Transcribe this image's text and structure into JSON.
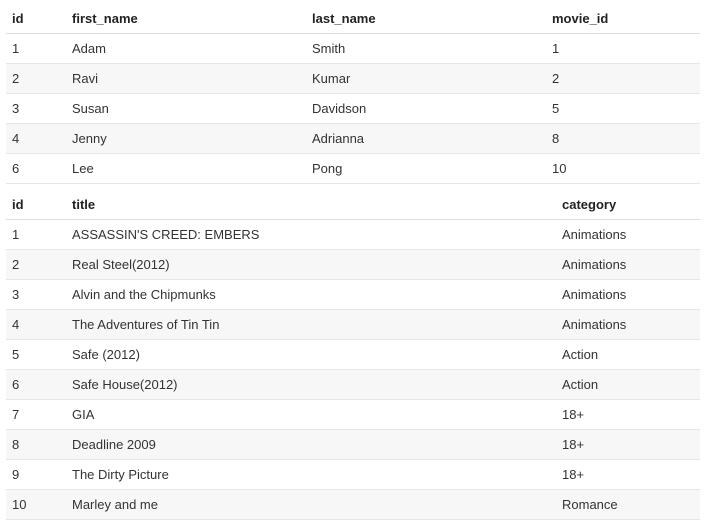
{
  "table1": {
    "columns": [
      "id",
      "first_name",
      "last_name",
      "movie_id"
    ],
    "rows": [
      {
        "id": "1",
        "first_name": "Adam",
        "last_name": "Smith",
        "movie_id": "1"
      },
      {
        "id": "2",
        "first_name": "Ravi",
        "last_name": "Kumar",
        "movie_id": "2"
      },
      {
        "id": "3",
        "first_name": "Susan",
        "last_name": "Davidson",
        "movie_id": "5"
      },
      {
        "id": "4",
        "first_name": "Jenny",
        "last_name": "Adrianna",
        "movie_id": "8"
      },
      {
        "id": "6",
        "first_name": "Lee",
        "last_name": "Pong",
        "movie_id": "10"
      }
    ],
    "header_fontweight": 700,
    "row_stripe_color": "#f7f7f7",
    "border_color": "#e6e6e6",
    "text_color": "#333333",
    "font_size_pt": 10
  },
  "table2": {
    "columns": [
      "id",
      "title",
      "category"
    ],
    "rows": [
      {
        "id": "1",
        "title": "ASSASSIN'S CREED: EMBERS",
        "category": "Animations"
      },
      {
        "id": "2",
        "title": "Real Steel(2012)",
        "category": "Animations"
      },
      {
        "id": "3",
        "title": "Alvin and the Chipmunks",
        "category": "Animations"
      },
      {
        "id": "4",
        "title": "The Adventures of Tin Tin",
        "category": "Animations"
      },
      {
        "id": "5",
        "title": "Safe (2012)",
        "category": "Action"
      },
      {
        "id": "6",
        "title": "Safe House(2012)",
        "category": "Action"
      },
      {
        "id": "7",
        "title": "GIA",
        "category": "18+"
      },
      {
        "id": "8",
        "title": "Deadline 2009",
        "category": "18+"
      },
      {
        "id": "9",
        "title": "The Dirty Picture",
        "category": "18+"
      },
      {
        "id": "10",
        "title": "Marley and me",
        "category": "Romance"
      }
    ],
    "header_fontweight": 700,
    "row_stripe_color": "#f7f7f7",
    "border_color": "#e6e6e6",
    "text_color": "#333333",
    "font_size_pt": 10
  }
}
